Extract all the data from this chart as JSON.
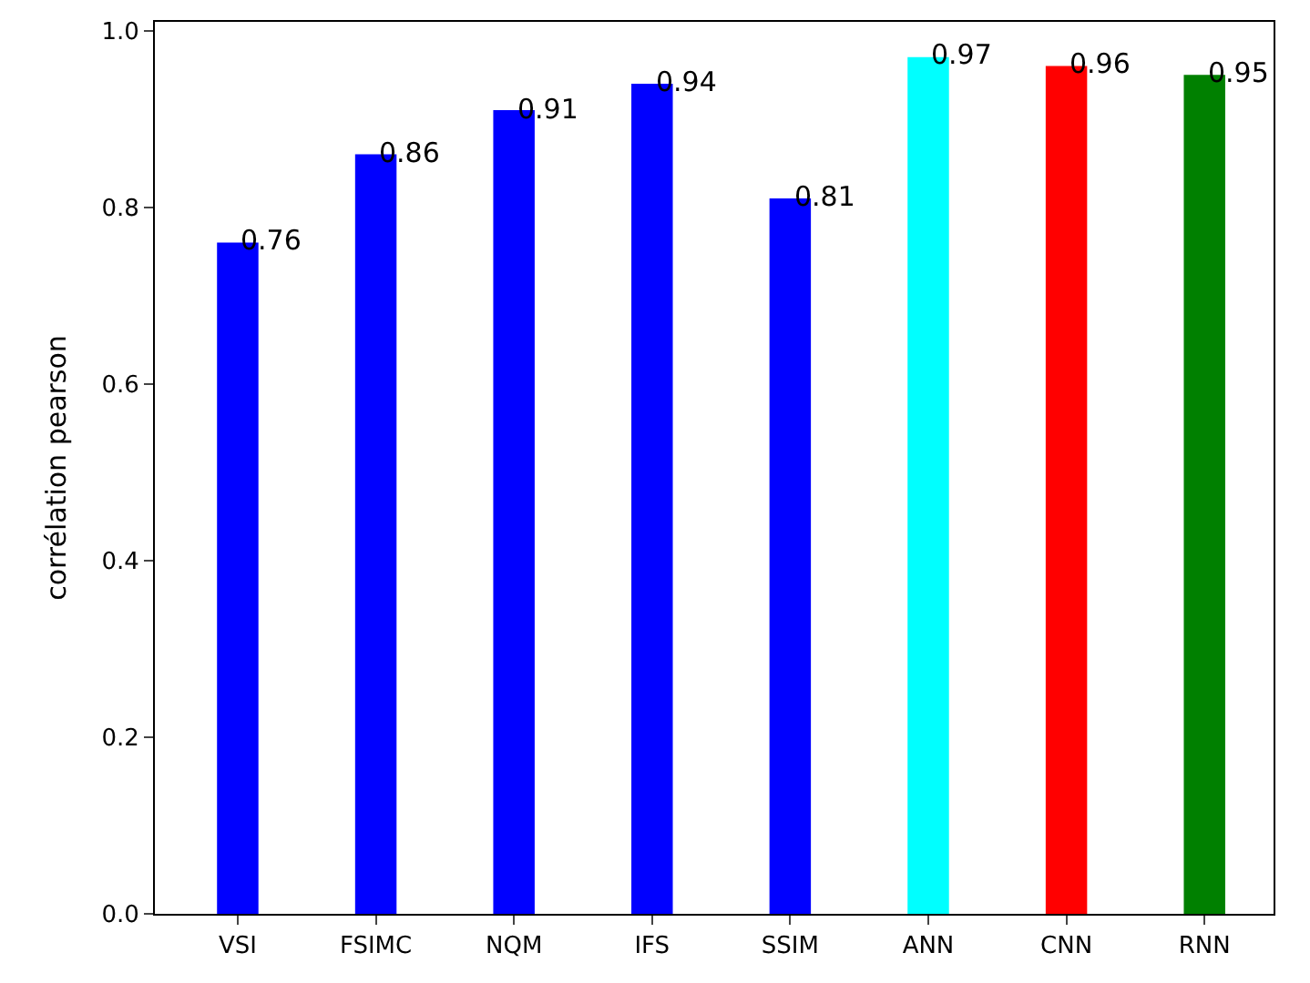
{
  "chart_data": {
    "type": "bar",
    "categories": [
      "VSI",
      "FSIMC",
      "NQM",
      "IFS",
      "SSIM",
      "ANN",
      "CNN",
      "RNN"
    ],
    "values": [
      0.76,
      0.86,
      0.91,
      0.94,
      0.81,
      0.97,
      0.96,
      0.95
    ],
    "colors": [
      "#0000ff",
      "#0000ff",
      "#0000ff",
      "#0000ff",
      "#0000ff",
      "#00ffff",
      "#ff0000",
      "#008000"
    ],
    "ylabel": "corrélation pearson",
    "ylim": [
      0,
      1.01
    ],
    "yticks": [
      {
        "value": 0,
        "label": "0.0"
      },
      {
        "value": 0.2,
        "label": "0.2"
      },
      {
        "value": 0.4,
        "label": "0.4"
      },
      {
        "value": 0.6,
        "label": "0.6"
      },
      {
        "value": 0.8,
        "label": "0.8"
      },
      {
        "value": 1,
        "label": "1.0"
      }
    ],
    "data_labels": true
  }
}
